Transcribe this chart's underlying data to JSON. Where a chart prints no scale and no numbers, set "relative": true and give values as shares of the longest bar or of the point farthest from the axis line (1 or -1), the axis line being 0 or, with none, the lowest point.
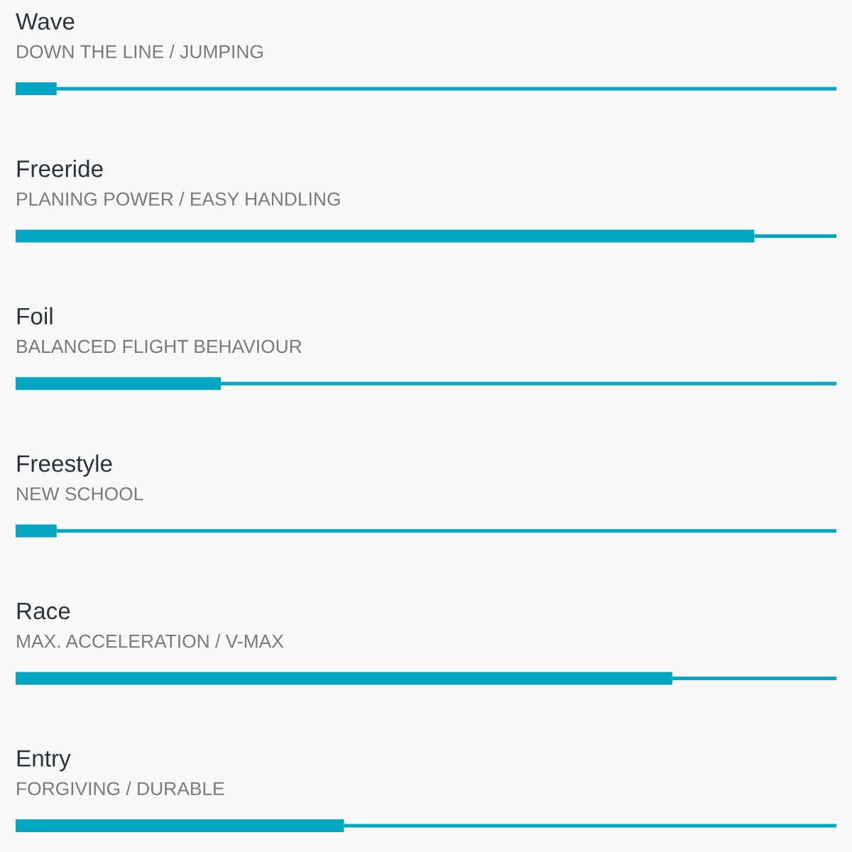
{
  "chart_data": {
    "type": "bar",
    "orientation": "horizontal",
    "stacked": true,
    "relative": true,
    "categories": [
      "Wave",
      "Freeride",
      "Foil",
      "Freestyle",
      "Race",
      "Entry"
    ],
    "annotations": [
      "DOWN THE LINE / JUMPING",
      "PLANING POWER / EASY HANDLING",
      "BALANCED FLIGHT BEHAVIOUR",
      "NEW SCHOOL",
      "MAX. ACCELERATION / V-MAX",
      "FORGIVING / DURABLE"
    ],
    "series": [
      {
        "color": "#00a7c2",
        "values": [
          0.05,
          0.9,
          0.25,
          0.05,
          0.8,
          0.4
        ]
      },
      {
        "color": "#00a7c2",
        "values": [
          0.95,
          0.1,
          0.75,
          0.95,
          0.2,
          0.6
        ]
      }
    ]
  }
}
